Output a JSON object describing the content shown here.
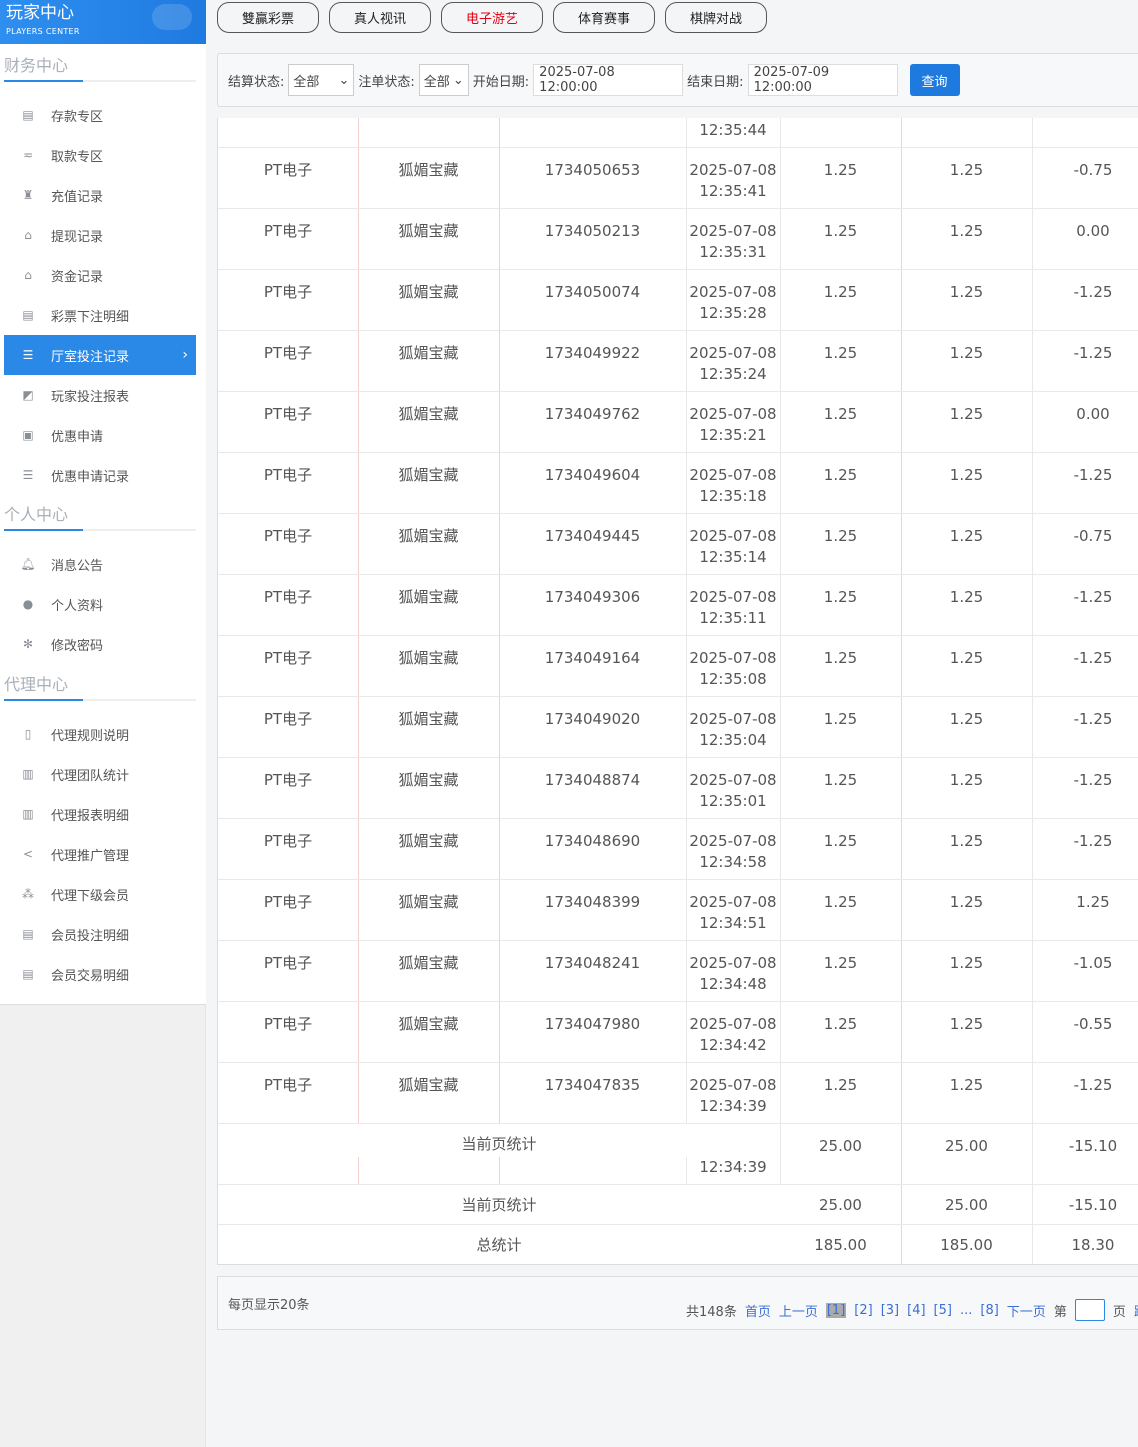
{
  "logo": {
    "title": "玩家中心",
    "subtitle": "PLAYERS CENTER"
  },
  "sidebar": {
    "sections": [
      {
        "title": "财务中心",
        "items": [
          {
            "label": "存款专区",
            "icon": "card-icon"
          },
          {
            "label": "取款专区",
            "icon": "hand-cash-icon"
          },
          {
            "label": "充值记录",
            "icon": "money-bag-icon"
          },
          {
            "label": "提现记录",
            "icon": "wallet-icon"
          },
          {
            "label": "资金记录",
            "icon": "safe-icon"
          },
          {
            "label": "彩票下注明细",
            "icon": "list-icon"
          },
          {
            "label": "厅室投注记录",
            "icon": "list-bullet-icon",
            "active": true
          },
          {
            "label": "玩家投注报表",
            "icon": "chart-icon"
          },
          {
            "label": "优惠申请",
            "icon": "gift-icon"
          },
          {
            "label": "优惠申请记录",
            "icon": "list-bullet-icon"
          }
        ]
      },
      {
        "title": "个人中心",
        "items": [
          {
            "label": "消息公告",
            "icon": "bell-icon"
          },
          {
            "label": "个人资料",
            "icon": "user-icon"
          },
          {
            "label": "修改密码",
            "icon": "gear-icon"
          }
        ]
      },
      {
        "title": "代理中心",
        "items": [
          {
            "label": "代理规则说明",
            "icon": "file-icon"
          },
          {
            "label": "代理团队统计",
            "icon": "book-icon"
          },
          {
            "label": "代理报表明细",
            "icon": "book-icon"
          },
          {
            "label": "代理推广管理",
            "icon": "share-icon"
          },
          {
            "label": "代理下级会员",
            "icon": "users-icon"
          },
          {
            "label": "会员投注明细",
            "icon": "clipboard-icon"
          },
          {
            "label": "会员交易明细",
            "icon": "clipboard-icon"
          }
        ]
      }
    ]
  },
  "tabs": [
    {
      "label": "雙贏彩票"
    },
    {
      "label": "真人视讯"
    },
    {
      "label": "电子游艺",
      "active": true
    },
    {
      "label": "体育赛事"
    },
    {
      "label": "棋牌对战"
    }
  ],
  "filter": {
    "settle_label": "结算状态:",
    "settle_value": "全部",
    "bet_label": "注单状态:",
    "bet_value": "全部",
    "start_label": "开始日期:",
    "start_value": "2025-07-08 12:00:00",
    "end_label": "结束日期:",
    "end_value": "2025-07-09 12:00:00",
    "query": "查询"
  },
  "table": {
    "partial_time": "12:35:44",
    "platform": "PT电子",
    "game": "狐媚宝藏",
    "date": "2025-07-08",
    "rows": [
      [
        "1734050653",
        "12:35:41",
        "1.25",
        "1.25",
        "-0.75"
      ],
      [
        "1734050213",
        "12:35:31",
        "1.25",
        "1.25",
        "0.00"
      ],
      [
        "1734050074",
        "12:35:28",
        "1.25",
        "1.25",
        "-1.25"
      ],
      [
        "1734049922",
        "12:35:24",
        "1.25",
        "1.25",
        "-1.25"
      ],
      [
        "1734049762",
        "12:35:21",
        "1.25",
        "1.25",
        "0.00"
      ],
      [
        "1734049604",
        "12:35:18",
        "1.25",
        "1.25",
        "-1.25"
      ],
      [
        "1734049445",
        "12:35:14",
        "1.25",
        "1.25",
        "-0.75"
      ],
      [
        "1734049306",
        "12:35:11",
        "1.25",
        "1.25",
        "-1.25"
      ],
      [
        "1734049164",
        "12:35:08",
        "1.25",
        "1.25",
        "-1.25"
      ],
      [
        "1734049020",
        "12:35:04",
        "1.25",
        "1.25",
        "-1.25"
      ],
      [
        "1734048874",
        "12:35:01",
        "1.25",
        "1.25",
        "-1.25"
      ],
      [
        "1734048690",
        "12:34:58",
        "1.25",
        "1.25",
        "-1.25"
      ],
      [
        "1734048399",
        "12:34:51",
        "1.25",
        "1.25",
        "1.25"
      ],
      [
        "1734048241",
        "12:34:48",
        "1.25",
        "1.25",
        "-1.05"
      ],
      [
        "1734047980",
        "12:34:42",
        "1.25",
        "1.25",
        "-0.55"
      ],
      [
        "1734047835",
        "12:34:39",
        "1.25",
        "1.25",
        "-1.25"
      ]
    ],
    "summary1": {
      "label": "当前页统计",
      "time": "12:34:39",
      "bet": "25.00",
      "valid": "25.00",
      "win": "-15.10"
    },
    "summary2": {
      "label": "当前页统计",
      "bet": "25.00",
      "valid": "25.00",
      "win": "-15.10"
    },
    "total": {
      "label": "总统计",
      "bet": "185.00",
      "valid": "185.00",
      "win": "18.30"
    }
  },
  "pager": {
    "per_page": "每页显示20条",
    "total": "共148条",
    "first": "首页",
    "prev": "上一页",
    "pages": [
      "[1]",
      "[2]",
      "[3]",
      "[4]",
      "[5]",
      "...",
      "[8]"
    ],
    "current": "[1]",
    "next": "下一页",
    "goto_prefix": "第",
    "goto_suffix": "页",
    "jump": "跳"
  }
}
